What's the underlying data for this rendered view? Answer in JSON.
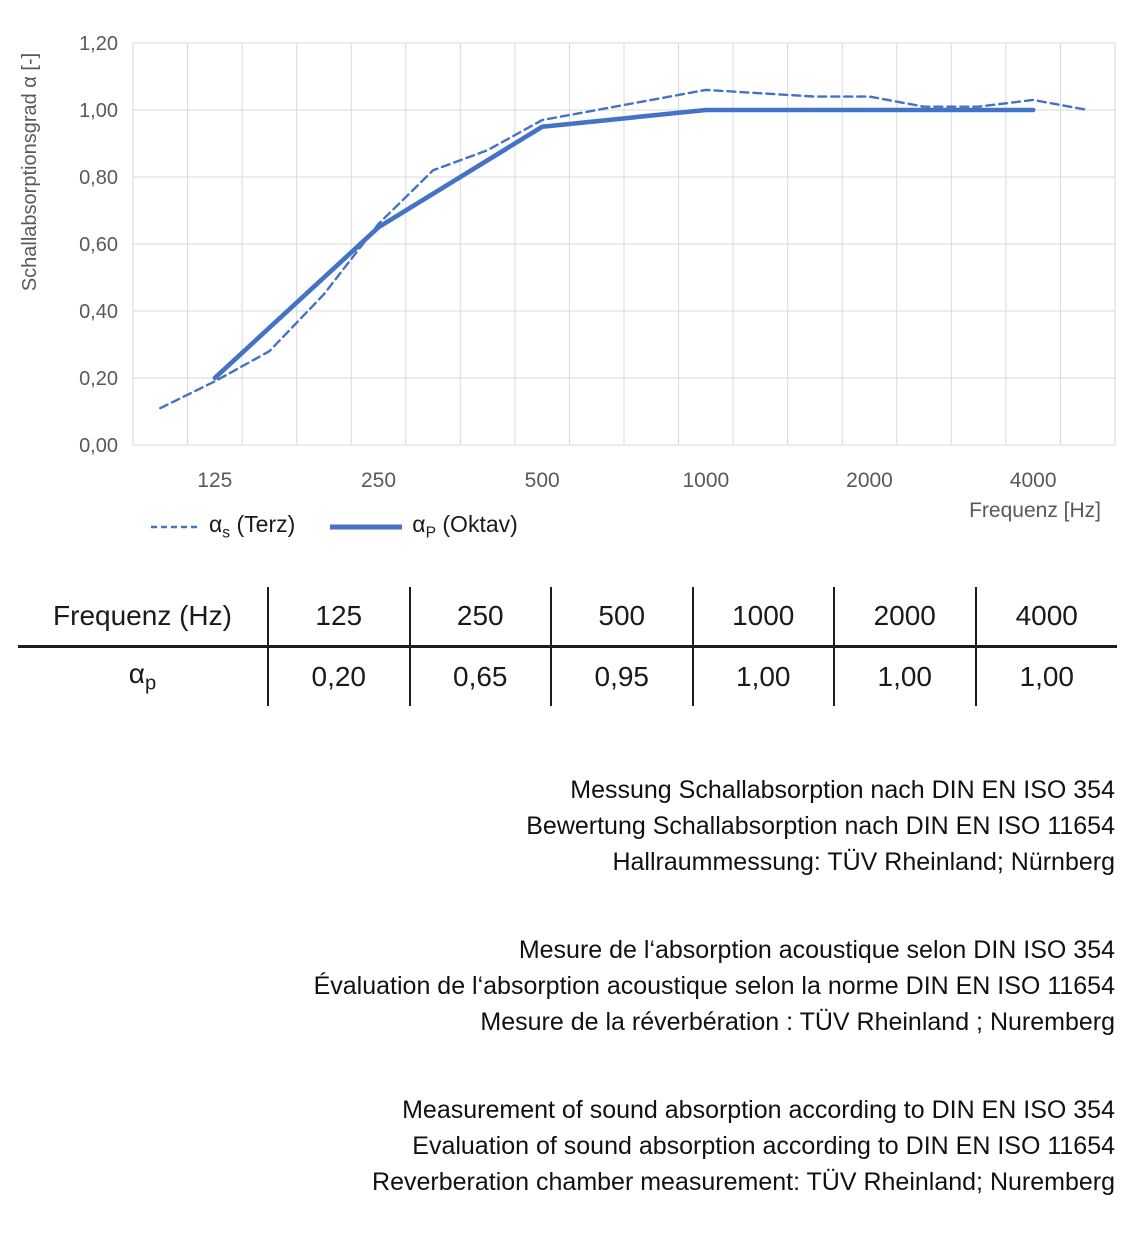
{
  "chart": {
    "y_axis_title": "Schallabsorptionsgrad α [-]",
    "x_axis_title": "Frequenz [Hz]",
    "legend": [
      {
        "sym": "α",
        "sub": "s",
        "rest": " (Terz)",
        "line_style": "dashed"
      },
      {
        "sym": "α",
        "sub": "P",
        "rest": " (Oktav)",
        "line_style": "solid"
      }
    ]
  },
  "chart_data": {
    "type": "line",
    "x_scale": "logarithmic-third-octave-bands",
    "band_categories": [
      100,
      125,
      160,
      200,
      250,
      315,
      400,
      500,
      630,
      800,
      1000,
      1250,
      1600,
      2000,
      2500,
      3150,
      4000,
      5000
    ],
    "x_tick_frequencies": [
      125,
      250,
      500,
      1000,
      2000,
      4000
    ],
    "x_tick_labels": [
      "125",
      "250",
      "500",
      "1000",
      "2000",
      "4000"
    ],
    "xlabel": "Frequenz [Hz]",
    "ylabel": "Schallabsorptionsgrad α [-]",
    "ylim": [
      0,
      1.2
    ],
    "y_tick_step": 0.2,
    "y_tick_labels": [
      "0,00",
      "0,20",
      "0,40",
      "0,60",
      "0,80",
      "1,00",
      "1,20"
    ],
    "grid": true,
    "legend_position": "bottom-left",
    "series": [
      {
        "name": "αs (Terz)",
        "style": "dashed",
        "x": [
          100,
          125,
          160,
          200,
          250,
          315,
          400,
          500,
          630,
          800,
          1000,
          1250,
          1600,
          2000,
          2500,
          3150,
          4000,
          5000
        ],
        "values": [
          0.11,
          0.19,
          0.28,
          0.45,
          0.66,
          0.82,
          0.88,
          0.97,
          1.0,
          1.03,
          1.06,
          1.05,
          1.04,
          1.04,
          1.01,
          1.01,
          1.03,
          1.0
        ]
      },
      {
        "name": "αP (Oktav)",
        "style": "solid",
        "x": [
          125,
          250,
          500,
          1000,
          2000,
          4000
        ],
        "values": [
          0.2,
          0.65,
          0.95,
          1.0,
          1.0,
          1.0
        ]
      }
    ]
  },
  "table": {
    "header_label": "Frequenz (Hz)",
    "frequencies": [
      "125",
      "250",
      "500",
      "1000",
      "2000",
      "4000"
    ],
    "row_symbol": "α",
    "row_symbol_sub": "p",
    "values": [
      "0,20",
      "0,65",
      "0,95",
      "1,00",
      "1,00",
      "1,00"
    ]
  },
  "notes": {
    "german": [
      "Messung Schallabsorption nach DIN EN ISO 354",
      "Bewertung Schallabsorption nach DIN EN ISO 11654",
      "Hallraummessung: TÜV Rheinland; Nürnberg"
    ],
    "french": [
      "Mesure de l‘absorption acoustique selon DIN ISO 354",
      "Évaluation de l‘absorption acoustique selon la norme DIN EN ISO 11654",
      "Mesure de la réverbération : TÜV Rheinland ; Nuremberg"
    ],
    "english": [
      "Measurement of sound absorption according to DIN EN ISO 354",
      "Evaluation of sound absorption according to DIN EN ISO 11654",
      "Reverberation chamber measurement: TÜV Rheinland; Nuremberg"
    ]
  },
  "colors": {
    "series_blue": "#4472C4",
    "grid_gray": "#D9D9D9",
    "axis_label_gray": "#595959",
    "text_black": "#1a1a1a"
  }
}
